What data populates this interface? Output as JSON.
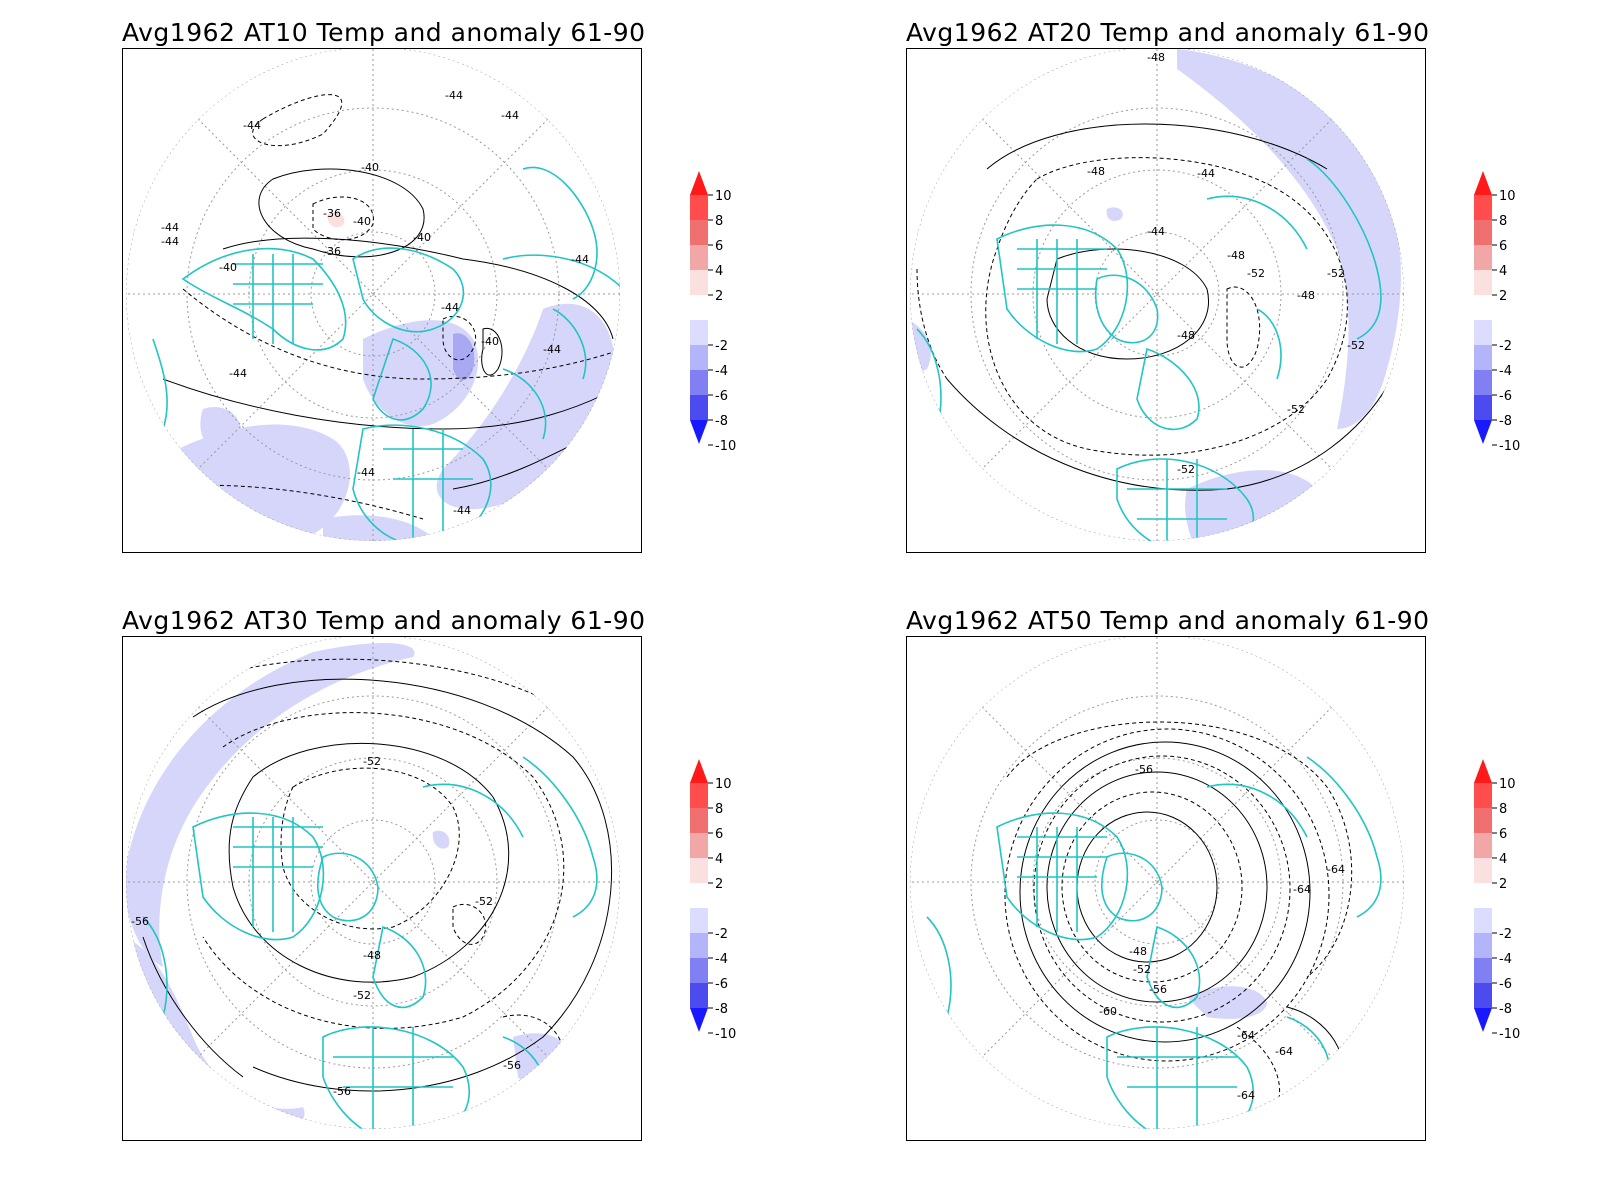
{
  "panels": [
    {
      "title": "Avg1962 AT10 Temp and anomaly 61-90",
      "contour_labels": [
        "-44",
        "-44",
        "-44",
        "-40",
        "-36",
        "-40",
        "-36",
        "-40",
        "-44",
        "-44",
        "-40",
        "-44",
        "-44",
        "-40",
        "-44",
        "-44",
        "-44",
        "-44"
      ],
      "anomaly_shading": "negative (light blue) patches over Pacific and Atlantic, darker blue over Scandinavia/Barents; small positive patch over Arctic"
    },
    {
      "title": "Avg1962 AT20 Temp and anomaly 61-90",
      "contour_labels": [
        "-48",
        "-48",
        "-44",
        "-44",
        "-48",
        "-48",
        "-52",
        "-52",
        "-48",
        "-52",
        "-52",
        "-52"
      ],
      "anomaly_shading": "negative (light blue) over North Pacific, Indian Ocean and North Africa"
    },
    {
      "title": "Avg1962 AT30 Temp and anomaly 61-90",
      "contour_labels": [
        "-52",
        "-52",
        "-48",
        "-52",
        "-56",
        "-56",
        "-56"
      ],
      "anomaly_shading": "negative (light blue) band over Pacific margin and Atlantic"
    },
    {
      "title": "Avg1962 AT50 Temp and anomaly 61-90",
      "contour_labels": [
        "-56",
        "-48",
        "-52",
        "-56",
        "-60",
        "-64",
        "-64",
        "-64",
        "-64",
        "-64"
      ],
      "anomaly_shading": "small negative patch over Mediterranean/Middle East"
    }
  ],
  "colorbar": {
    "ticks": [
      "10",
      "8",
      "6",
      "4",
      "2",
      "-2",
      "-4",
      "-6",
      "-8",
      "-10"
    ],
    "colors": [
      "#ff1a1a",
      "#ff4d4d",
      "#f07070",
      "#f2a7a7",
      "#fbe0e0",
      "#ffffff",
      "#dcdcff",
      "#b4b4fa",
      "#8080f2",
      "#4b4bf0",
      "#1919ff"
    ]
  },
  "map_style": {
    "coastline_color": "#22c4c4",
    "contour_color": "#000000",
    "grid_color": "#9a9a9a",
    "negative_anomaly_color": "#d6d6fb",
    "strong_negative_color": "#a9a9f3",
    "positive_anomaly_color": "#fbdede"
  }
}
